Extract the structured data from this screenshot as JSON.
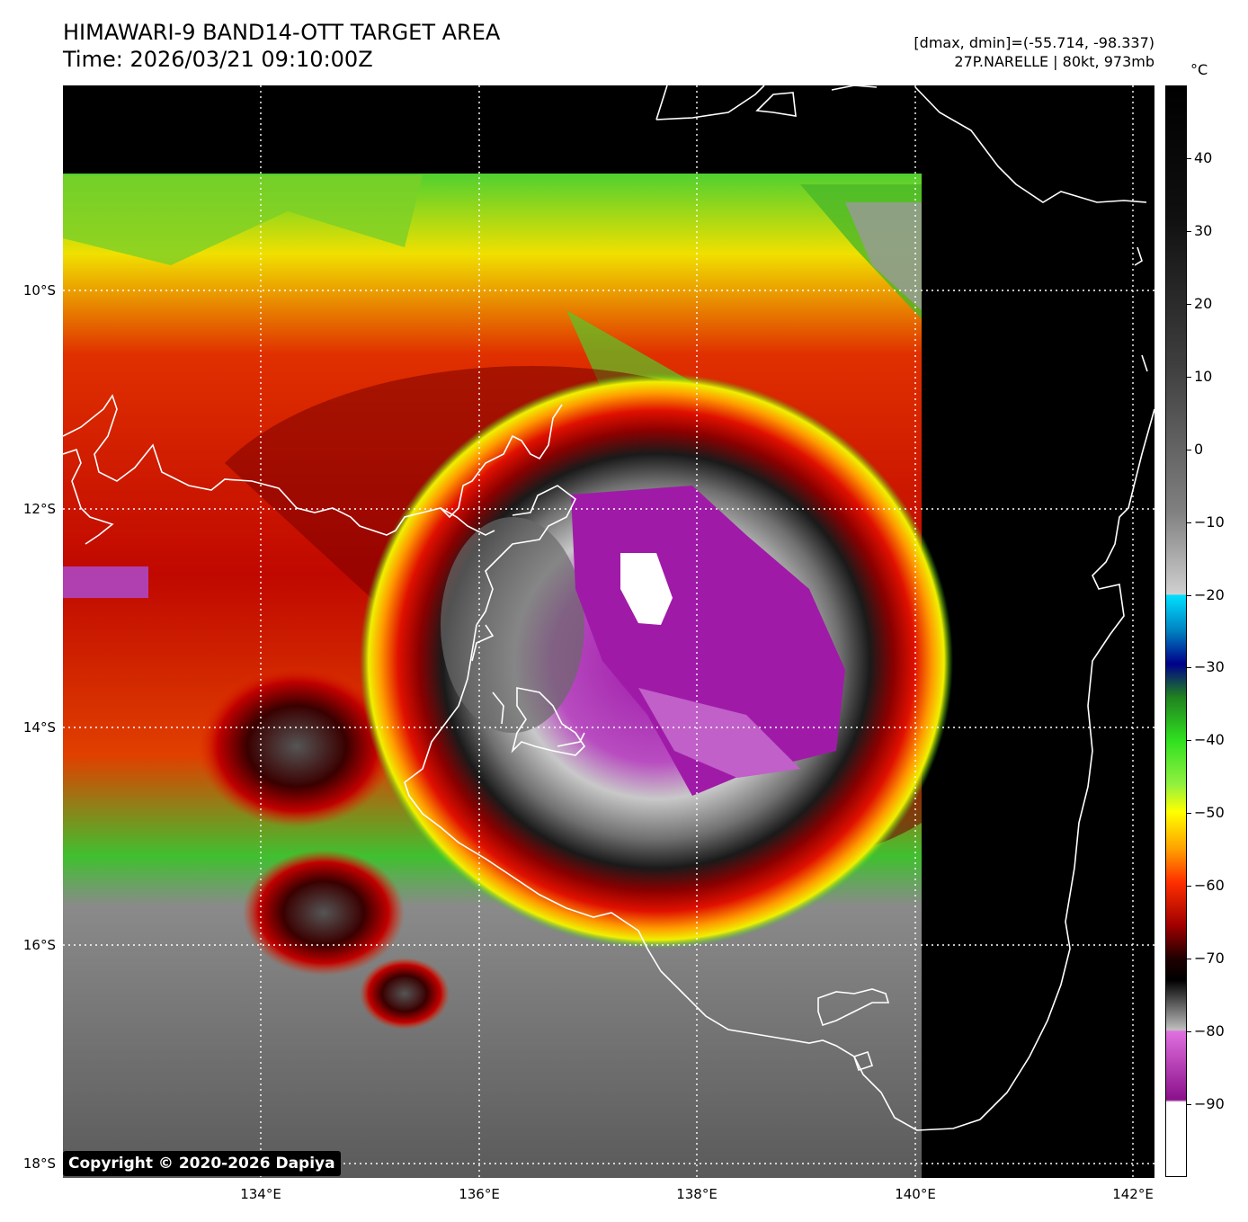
{
  "header": {
    "title_line1": "HIMAWARI-9 BAND14-OTT TARGET AREA",
    "title_line2": "Time: 2026/03/21 09:10:00Z",
    "dmax_dmin": "[dmax, dmin]=(-55.714, -98.337)",
    "storm_info": "27P.NARELLE | 80kt, 973mb"
  },
  "map": {
    "lat_labels": [
      "10°S",
      "12°S",
      "14°S",
      "16°S",
      "18°S"
    ],
    "lon_labels": [
      "134°E",
      "136°E",
      "138°E",
      "140°E",
      "142°E"
    ],
    "background_color": "#000000",
    "gridline_color": "#ffffff",
    "coastline_color": "#ffffff"
  },
  "colorbar": {
    "unit": "°C",
    "ticks": [
      "40",
      "30",
      "20",
      "10",
      "0",
      "−10",
      "−20",
      "−30",
      "−40",
      "−50",
      "−60",
      "−70",
      "−80",
      "−90"
    ],
    "range": [
      -100,
      50
    ]
  },
  "footer": {
    "copyright": "Copyright © 2020-2026 Dapiya"
  }
}
